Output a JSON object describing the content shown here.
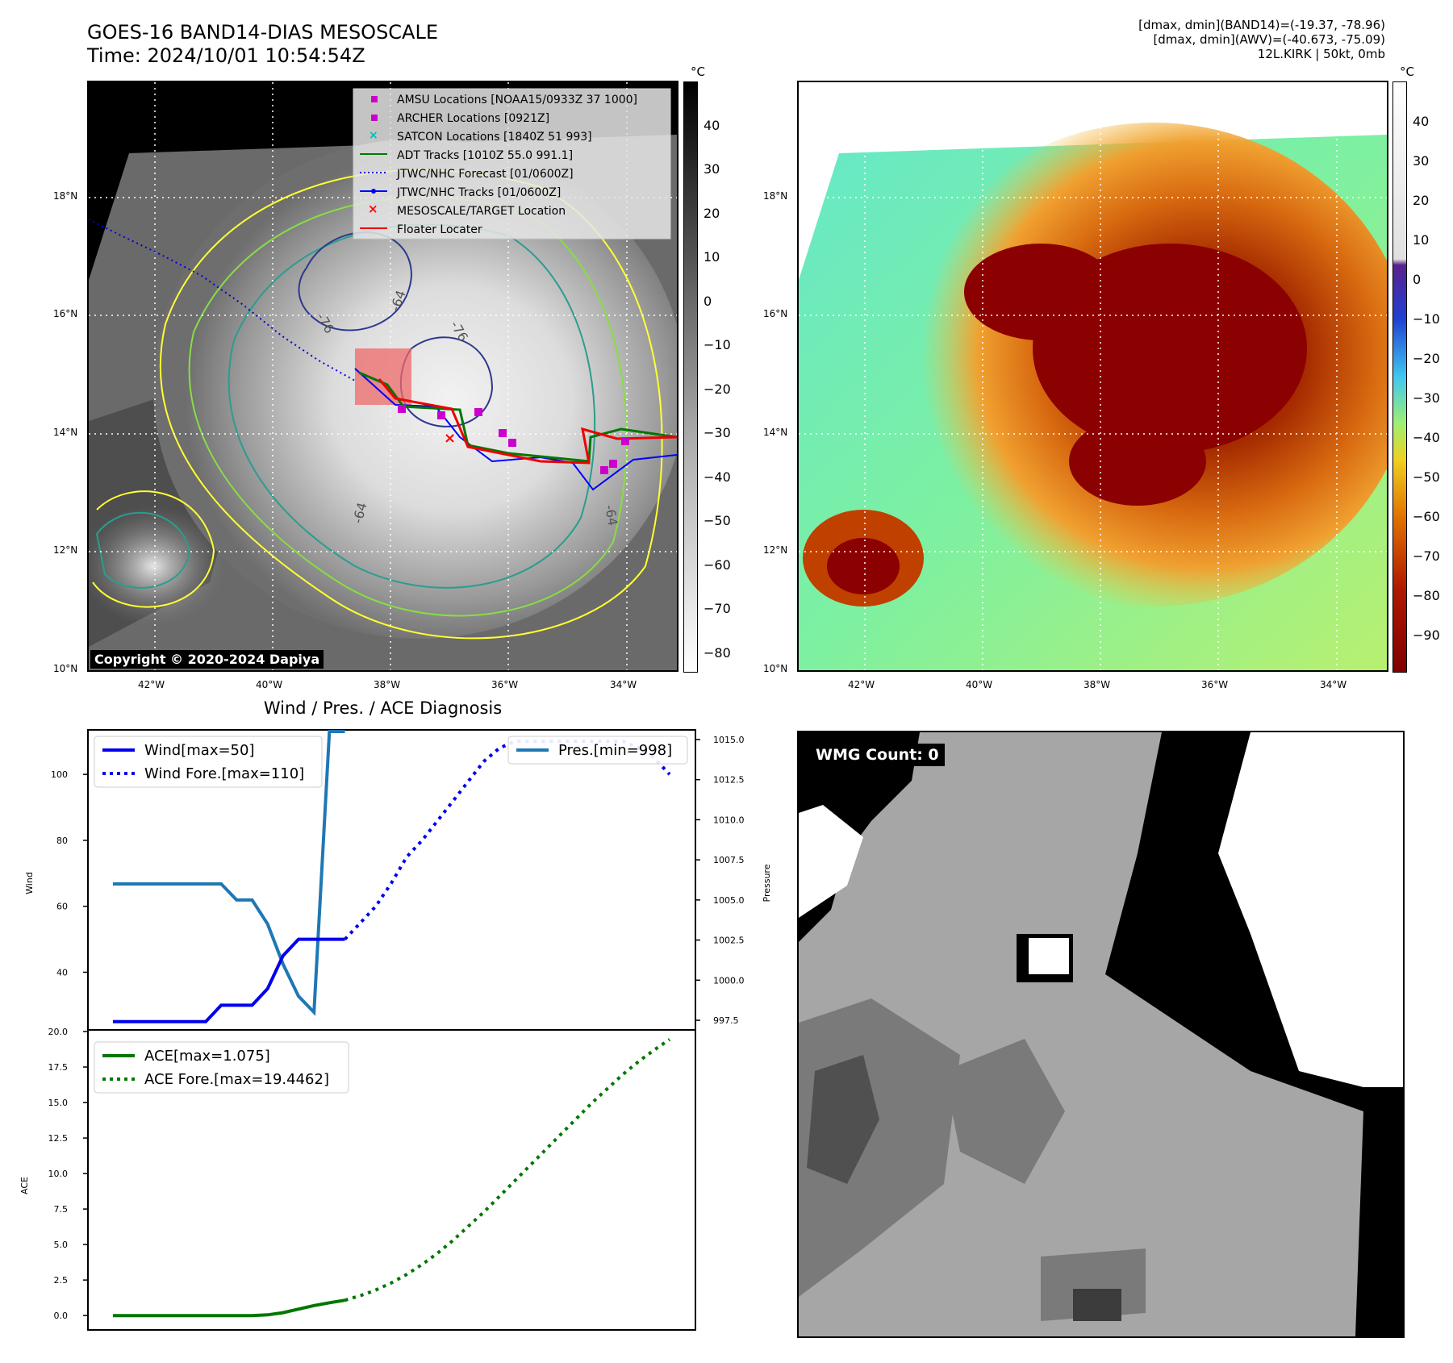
{
  "header": {
    "title_line1": "GOES-16 BAND14-DIAS MESOSCALE",
    "title_line2": "Time: 2024/10/01 10:54:54Z",
    "info_line1": "[dmax, dmin](BAND14)=(-19.37, -78.96)",
    "info_line2": "[dmax, dmin](AWV)=(-40.673, -75.09)",
    "info_line3": "12L.KIRK | 50kt, 0mb"
  },
  "map": {
    "lat_ticks": [
      "18°N",
      "16°N",
      "14°N",
      "12°N",
      "10°N"
    ],
    "lon_ticks": [
      "42°W",
      "40°W",
      "38°W",
      "36°W",
      "34°W"
    ],
    "contour_labels": [
      "-76",
      "-64",
      "-76",
      "-64",
      "-64"
    ],
    "copyright": "Copyright © 2020-2024 Dapiya",
    "legend": [
      {
        "label": "AMSU Locations [NOAA15/0933Z 37 1000]",
        "icon": "magenta-square",
        "color": "#cc00cc"
      },
      {
        "label": "ARCHER Locations [0921Z]",
        "icon": "magenta-square",
        "color": "#cc00cc"
      },
      {
        "label": "SATCON Locations [1840Z 51 993]",
        "icon": "cyan-x",
        "color": "#00bbbb"
      },
      {
        "label": "ADT Tracks [1010Z 55.0 991.1]",
        "icon": "green-line",
        "color": "#007700"
      },
      {
        "label": "JTWC/NHC Forecast [01/0600Z]",
        "icon": "blue-dotted-line",
        "color": "#0000dd"
      },
      {
        "label": "JTWC/NHC Tracks [01/0600Z]",
        "icon": "blue-line-dot",
        "color": "#0000ff"
      },
      {
        "label": "MESOSCALE/TARGET Location",
        "icon": "red-x",
        "color": "#ff0000"
      },
      {
        "label": "Floater Locater",
        "icon": "red-line",
        "color": "#ee0000"
      }
    ]
  },
  "colorbar_gray": {
    "unit": "°C",
    "ticks": [
      "40",
      "30",
      "20",
      "10",
      "0",
      "−10",
      "−20",
      "−30",
      "−40",
      "−50",
      "−60",
      "−70",
      "−80"
    ]
  },
  "colorbar_color": {
    "unit": "°C",
    "ticks": [
      "40",
      "30",
      "20",
      "10",
      "0",
      "−10",
      "−20",
      "−30",
      "−40",
      "−50",
      "−60",
      "−70",
      "−80",
      "−90"
    ]
  },
  "diagnosis": {
    "title": "Wind / Pres. / ACE Diagnosis",
    "wind_ylabel": "Wind",
    "pressure_ylabel": "Pressure",
    "ace_ylabel": "ACE",
    "legend_wind": "Wind[max=50]",
    "legend_wind_fore": "Wind Fore.[max=110]",
    "legend_pres": "Pres.[min=998]",
    "legend_ace": "ACE[max=1.075]",
    "legend_ace_fore": "ACE Fore.[max=19.4462]"
  },
  "wmg": {
    "label": "WMG Count: 0"
  },
  "colors": {
    "wind": "#0000ee",
    "pressure": "#1f77b4",
    "ace": "#007700"
  },
  "chart_data": [
    {
      "type": "line",
      "title": "Wind / Pres. / ACE Diagnosis",
      "ylabel": "Wind",
      "ylim": [
        23,
        113
      ],
      "yticks": [
        40,
        60,
        80,
        100
      ],
      "series": [
        {
          "name": "Wind[max=50]",
          "x": [
            0,
            1,
            2,
            3,
            4,
            5,
            6,
            7,
            8,
            9,
            10,
            11,
            12,
            13,
            14,
            15
          ],
          "values": [
            25,
            25,
            25,
            25,
            25,
            25,
            25,
            30,
            30,
            30,
            35,
            45,
            50,
            50,
            50,
            50
          ]
        },
        {
          "name": "Wind Fore.[max=110]",
          "x": [
            15,
            16,
            17,
            18,
            19,
            20,
            21,
            22,
            23,
            24,
            25,
            26,
            27,
            28,
            29,
            30,
            31,
            32,
            33,
            34,
            35,
            36
          ],
          "values": [
            50,
            55,
            60,
            67,
            75,
            80,
            86,
            92,
            98,
            104,
            108,
            110,
            110,
            110,
            110,
            110,
            110,
            110,
            110,
            108,
            105,
            100
          ]
        }
      ]
    },
    {
      "type": "line",
      "ylabel": "Pressure",
      "ylim": [
        997.0,
        1015.5
      ],
      "yticks": [
        997.5,
        1000.0,
        1002.5,
        1005.0,
        1007.5,
        1010.0,
        1012.5,
        1015.0
      ],
      "series": [
        {
          "name": "Pres.[min=998]",
          "x": [
            0,
            1,
            2,
            3,
            4,
            5,
            6,
            7,
            8,
            9,
            10,
            11,
            12,
            13,
            14,
            15
          ],
          "values": [
            1006,
            1006,
            1006,
            1006,
            1006,
            1006,
            1006,
            1006,
            1005,
            1005,
            1003.5,
            1001,
            999,
            998,
            1015.5,
            1015.5
          ]
        }
      ]
    },
    {
      "type": "line",
      "ylabel": "ACE",
      "ylim": [
        -0.9,
        20.0
      ],
      "yticks": [
        0.0,
        2.5,
        5.0,
        7.5,
        10.0,
        12.5,
        15.0,
        17.5,
        20.0
      ],
      "series": [
        {
          "name": "ACE[max=1.075]",
          "x": [
            0,
            1,
            2,
            3,
            4,
            5,
            6,
            7,
            8,
            9,
            10,
            11,
            12,
            13,
            14,
            15
          ],
          "values": [
            0,
            0,
            0,
            0,
            0,
            0,
            0,
            0,
            0,
            0,
            0.05,
            0.2,
            0.45,
            0.7,
            0.9,
            1.075
          ]
        },
        {
          "name": "ACE Fore.[max=19.4462]",
          "x": [
            15,
            16,
            17,
            18,
            19,
            20,
            21,
            22,
            23,
            24,
            25,
            26,
            27,
            28,
            29,
            30,
            31,
            32,
            33,
            34,
            35,
            36
          ],
          "values": [
            1.075,
            1.4,
            1.8,
            2.3,
            2.9,
            3.6,
            4.4,
            5.3,
            6.3,
            7.3,
            8.4,
            9.5,
            10.6,
            11.7,
            12.8,
            13.9,
            15.0,
            16.0,
            17.0,
            17.9,
            18.7,
            19.4462
          ]
        }
      ]
    }
  ]
}
